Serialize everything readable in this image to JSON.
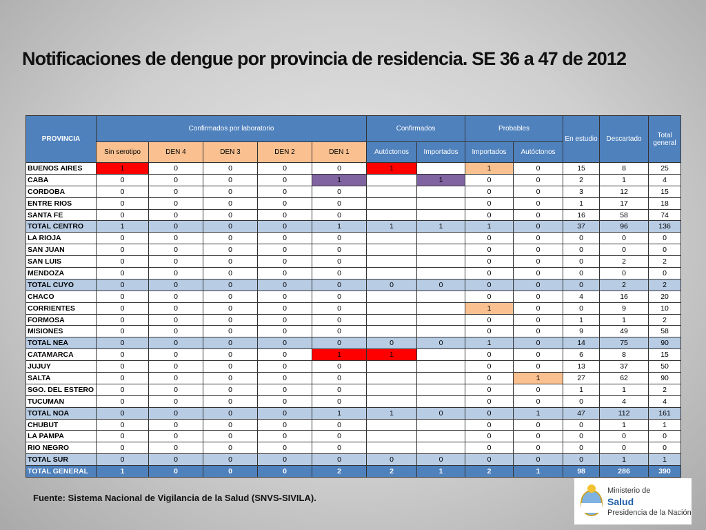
{
  "title": "Notificaciones de dengue por provincia de residencia. SE 36 a 47 de 2012",
  "table": {
    "header": {
      "provincia": "PROVINCIA",
      "groups": [
        {
          "label": "Confirmados por laboratorio",
          "subheader_color": "#fac090",
          "columns": [
            "Sin serotipo",
            "DEN 4",
            "DEN 3",
            "DEN 2",
            "DEN 1"
          ]
        },
        {
          "label": "Confirmados",
          "subheader_color": "#4f81bd",
          "columns": [
            "Autóctonos",
            "Importados"
          ]
        },
        {
          "label": "Probables",
          "subheader_color": "#4f81bd",
          "columns": [
            "Importados",
            "Autóctonos"
          ]
        }
      ],
      "tail": [
        "En estudio",
        "Descartado",
        "Total general"
      ]
    },
    "rows": [
      [
        "BUENOS AIRES",
        1,
        0,
        0,
        0,
        0,
        1,
        null,
        1,
        0,
        15,
        8,
        25
      ],
      [
        "CABA",
        0,
        0,
        0,
        0,
        1,
        null,
        1,
        0,
        0,
        2,
        1,
        4
      ],
      [
        "CORDOBA",
        0,
        0,
        0,
        0,
        0,
        null,
        null,
        0,
        0,
        3,
        12,
        15
      ],
      [
        "ENTRE RIOS",
        0,
        0,
        0,
        0,
        0,
        null,
        null,
        0,
        0,
        1,
        17,
        18
      ],
      [
        "SANTA FE",
        0,
        0,
        0,
        0,
        0,
        null,
        null,
        0,
        0,
        16,
        58,
        74
      ],
      [
        "TOTAL CENTRO",
        1,
        0,
        0,
        0,
        1,
        1,
        1,
        1,
        0,
        37,
        96,
        136
      ],
      [
        "LA RIOJA",
        0,
        0,
        0,
        0,
        0,
        null,
        null,
        0,
        0,
        0,
        0,
        0
      ],
      [
        "SAN JUAN",
        0,
        0,
        0,
        0,
        0,
        null,
        null,
        0,
        0,
        0,
        0,
        0
      ],
      [
        "SAN LUIS",
        0,
        0,
        0,
        0,
        0,
        null,
        null,
        0,
        0,
        0,
        2,
        2
      ],
      [
        "MENDOZA",
        0,
        0,
        0,
        0,
        0,
        null,
        null,
        0,
        0,
        0,
        0,
        0
      ],
      [
        "TOTAL CUYO",
        0,
        0,
        0,
        0,
        0,
        0,
        0,
        0,
        0,
        0,
        2,
        2
      ],
      [
        "CHACO",
        0,
        0,
        0,
        0,
        0,
        null,
        null,
        0,
        0,
        4,
        16,
        20
      ],
      [
        "CORRIENTES",
        0,
        0,
        0,
        0,
        0,
        null,
        null,
        1,
        0,
        0,
        9,
        10
      ],
      [
        "FORMOSA",
        0,
        0,
        0,
        0,
        0,
        null,
        null,
        0,
        0,
        1,
        1,
        2
      ],
      [
        "MISIONES",
        0,
        0,
        0,
        0,
        0,
        null,
        null,
        0,
        0,
        9,
        49,
        58
      ],
      [
        "TOTAL NEA",
        0,
        0,
        0,
        0,
        0,
        0,
        0,
        1,
        0,
        14,
        75,
        90
      ],
      [
        "CATAMARCA",
        0,
        0,
        0,
        0,
        1,
        1,
        null,
        0,
        0,
        6,
        8,
        15
      ],
      [
        "JUJUY",
        0,
        0,
        0,
        0,
        0,
        null,
        null,
        0,
        0,
        13,
        37,
        50
      ],
      [
        "SALTA",
        0,
        0,
        0,
        0,
        0,
        null,
        null,
        0,
        1,
        27,
        62,
        90
      ],
      [
        "SGO. DEL ESTERO",
        0,
        0,
        0,
        0,
        0,
        null,
        null,
        0,
        0,
        1,
        1,
        2
      ],
      [
        "TUCUMAN",
        0,
        0,
        0,
        0,
        0,
        null,
        null,
        0,
        0,
        0,
        4,
        4
      ],
      [
        "TOTAL NOA",
        0,
        0,
        0,
        0,
        1,
        1,
        0,
        0,
        1,
        47,
        112,
        161
      ],
      [
        "CHUBUT",
        0,
        0,
        0,
        0,
        0,
        null,
        null,
        0,
        0,
        0,
        1,
        1
      ],
      [
        "LA PAMPA",
        0,
        0,
        0,
        0,
        0,
        null,
        null,
        0,
        0,
        0,
        0,
        0
      ],
      [
        "RIO NEGRO",
        0,
        0,
        0,
        0,
        0,
        null,
        null,
        0,
        0,
        0,
        0,
        0
      ],
      [
        "TOTAL SUR",
        0,
        0,
        0,
        0,
        0,
        0,
        0,
        0,
        0,
        0,
        1,
        1
      ],
      [
        "TOTAL GENERAL",
        1,
        0,
        0,
        0,
        2,
        2,
        1,
        2,
        1,
        98,
        286,
        390
      ]
    ],
    "highlights": [
      {
        "row": 0,
        "col": 1,
        "color": "#ff0000"
      },
      {
        "row": 0,
        "col": 6,
        "color": "#ff0000"
      },
      {
        "row": 0,
        "col": 8,
        "color": "#fac090"
      },
      {
        "row": 1,
        "col": 5,
        "color": "#8064a2"
      },
      {
        "row": 1,
        "col": 7,
        "color": "#8064a2"
      },
      {
        "row": 12,
        "col": 8,
        "color": "#fac090"
      },
      {
        "row": 16,
        "col": 5,
        "color": "#ff0000"
      },
      {
        "row": 16,
        "col": 6,
        "color": "#ff0000"
      },
      {
        "row": 18,
        "col": 9,
        "color": "#fac090"
      }
    ]
  },
  "footer": "Fuente: Sistema Nacional de Vigilancia de la Salud (SNVS-SIVILA).",
  "logo": {
    "line1": "Ministerio de",
    "line2": "Salud",
    "line3": "Presidencia de la Nación"
  }
}
